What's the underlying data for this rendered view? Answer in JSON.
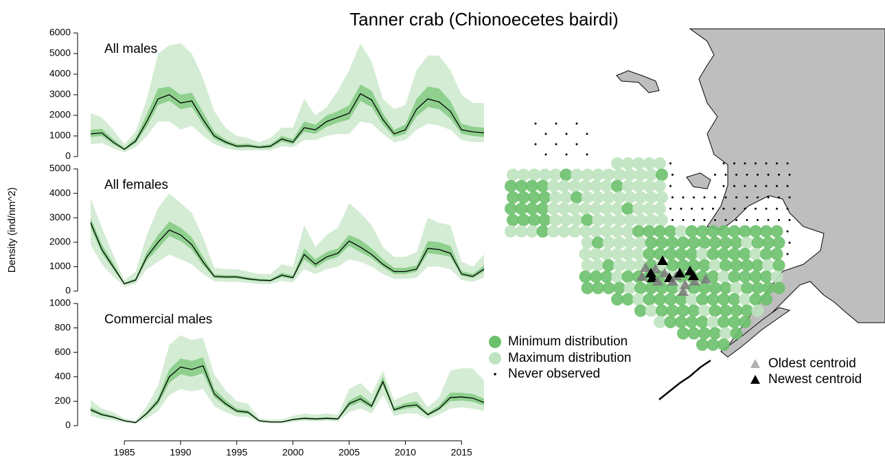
{
  "title": "Tanner crab (Chionoecetes bairdi)",
  "ylabel": "Density (ind/nm^2)",
  "chart_data": [
    {
      "type": "line",
      "title": "All males",
      "color": "#000000",
      "inner_color": "#8fd08f",
      "outer_color": "#d4ecd4",
      "xlim": [
        1982,
        2017
      ],
      "ylim": [
        0,
        6000
      ],
      "yticks": [
        0,
        1000,
        2000,
        3000,
        4000,
        5000,
        6000
      ],
      "x": [
        1982,
        1983,
        1984,
        1985,
        1986,
        1987,
        1988,
        1989,
        1990,
        1991,
        1992,
        1993,
        1994,
        1995,
        1996,
        1997,
        1998,
        1999,
        2000,
        2001,
        2002,
        2003,
        2004,
        2005,
        2006,
        2007,
        2008,
        2009,
        2010,
        2011,
        2012,
        2013,
        2014,
        2015,
        2016,
        2017
      ],
      "values": [
        1100,
        1150,
        700,
        350,
        750,
        1700,
        2800,
        3000,
        2600,
        2700,
        1800,
        1000,
        700,
        500,
        520,
        450,
        500,
        850,
        700,
        1400,
        1300,
        1700,
        1900,
        2100,
        3050,
        2750,
        1800,
        1100,
        1300,
        2300,
        2800,
        2650,
        2200,
        1300,
        1200,
        1150
      ],
      "outer_lower": [
        600,
        650,
        400,
        200,
        450,
        1000,
        1700,
        1700,
        1300,
        1500,
        1000,
        600,
        400,
        300,
        300,
        300,
        300,
        500,
        450,
        800,
        800,
        1000,
        1100,
        1100,
        1700,
        1600,
        1100,
        700,
        800,
        1300,
        1600,
        1500,
        1300,
        800,
        700,
        700
      ],
      "outer_upper": [
        2100,
        1900,
        1300,
        600,
        1200,
        2800,
        5000,
        5400,
        5500,
        5000,
        3800,
        2200,
        1400,
        1000,
        900,
        700,
        900,
        1400,
        1400,
        2800,
        2000,
        2400,
        3200,
        4200,
        5500,
        4600,
        2800,
        2300,
        2500,
        4200,
        4900,
        4900,
        4200,
        3000,
        2600,
        2600
      ],
      "inner_lower": [
        950,
        1000,
        600,
        300,
        650,
        1450,
        2500,
        2700,
        2300,
        2400,
        1550,
        850,
        600,
        420,
        440,
        390,
        420,
        720,
        600,
        1200,
        1100,
        1450,
        1650,
        1800,
        2700,
        2400,
        1550,
        950,
        1100,
        1950,
        2400,
        2300,
        1850,
        1100,
        1000,
        950
      ],
      "inner_upper": [
        1300,
        1350,
        850,
        420,
        900,
        2050,
        3300,
        3400,
        3000,
        3100,
        2150,
        1200,
        820,
        600,
        620,
        520,
        600,
        1000,
        850,
        1700,
        1550,
        2000,
        2200,
        2500,
        3500,
        3200,
        2100,
        1300,
        1550,
        2800,
        3400,
        3300,
        2700,
        1600,
        1450,
        1400
      ]
    },
    {
      "type": "line",
      "title": "All females",
      "color": "#000000",
      "inner_color": "#8fd08f",
      "outer_color": "#d4ecd4",
      "xlim": [
        1982,
        2017
      ],
      "ylim": [
        0,
        5000
      ],
      "yticks": [
        0,
        1000,
        2000,
        3000,
        4000,
        5000
      ],
      "x": [
        1982,
        1983,
        1984,
        1985,
        1986,
        1987,
        1988,
        1989,
        1990,
        1991,
        1992,
        1993,
        1994,
        1995,
        1996,
        1997,
        1998,
        1999,
        2000,
        2001,
        2002,
        2003,
        2004,
        2005,
        2006,
        2007,
        2008,
        2009,
        2010,
        2011,
        2012,
        2013,
        2014,
        2015,
        2016,
        2017
      ],
      "values": [
        2800,
        1700,
        1000,
        300,
        450,
        1400,
        2000,
        2500,
        2300,
        1900,
        1200,
        600,
        580,
        580,
        500,
        450,
        430,
        650,
        550,
        1500,
        1100,
        1400,
        1550,
        2050,
        1800,
        1500,
        1100,
        800,
        800,
        900,
        1750,
        1700,
        1550,
        700,
        600,
        900
      ],
      "outer_lower": [
        1900,
        1100,
        600,
        200,
        300,
        900,
        1200,
        1500,
        1300,
        1100,
        700,
        400,
        380,
        380,
        330,
        300,
        280,
        420,
        350,
        900,
        700,
        900,
        1000,
        1300,
        1200,
        1000,
        700,
        500,
        500,
        550,
        1000,
        1000,
        900,
        450,
        380,
        550
      ],
      "outer_upper": [
        3800,
        2600,
        1500,
        450,
        800,
        2300,
        3400,
        4000,
        3600,
        3200,
        2200,
        950,
        900,
        900,
        800,
        700,
        700,
        1100,
        1000,
        2700,
        1800,
        2300,
        2600,
        3600,
        3200,
        2700,
        1800,
        1400,
        1400,
        1600,
        3000,
        2800,
        2700,
        1200,
        1000,
        1500
      ],
      "inner_lower": [
        2600,
        1550,
        900,
        270,
        400,
        1250,
        1750,
        2250,
        2050,
        1700,
        1050,
        540,
        520,
        520,
        450,
        400,
        390,
        580,
        490,
        1300,
        950,
        1250,
        1400,
        1850,
        1600,
        1350,
        980,
        700,
        700,
        800,
        1550,
        1500,
        1400,
        620,
        530,
        800
      ],
      "inner_upper": [
        3000,
        1900,
        1150,
        340,
        520,
        1600,
        2300,
        2850,
        2600,
        2200,
        1400,
        680,
        650,
        650,
        570,
        510,
        490,
        750,
        640,
        1750,
        1300,
        1600,
        1750,
        2300,
        2100,
        1750,
        1300,
        950,
        950,
        1050,
        2050,
        2000,
        1850,
        820,
        700,
        1050
      ]
    },
    {
      "type": "line",
      "title": "Commercial males",
      "color": "#000000",
      "inner_color": "#8fd08f",
      "outer_color": "#d4ecd4",
      "xlim": [
        1982,
        2017
      ],
      "ylim": [
        0,
        1000
      ],
      "yticks": [
        0,
        200,
        400,
        600,
        800,
        1000
      ],
      "xticks": [
        1985,
        1990,
        1995,
        2000,
        2005,
        2010,
        2015
      ],
      "x": [
        1982,
        1983,
        1984,
        1985,
        1986,
        1987,
        1988,
        1989,
        1990,
        1991,
        1992,
        1993,
        1994,
        1995,
        1996,
        1997,
        1998,
        1999,
        2000,
        2001,
        2002,
        2003,
        2004,
        2005,
        2006,
        2007,
        2008,
        2009,
        2010,
        2011,
        2012,
        2013,
        2014,
        2015,
        2016,
        2017
      ],
      "values": [
        130,
        90,
        70,
        40,
        25,
        100,
        200,
        400,
        480,
        460,
        490,
        260,
        180,
        120,
        110,
        40,
        30,
        30,
        50,
        60,
        55,
        60,
        55,
        180,
        220,
        160,
        360,
        130,
        160,
        170,
        90,
        140,
        230,
        235,
        225,
        190
      ],
      "outer_lower": [
        80,
        55,
        45,
        25,
        15,
        60,
        120,
        250,
        300,
        280,
        300,
        160,
        110,
        75,
        70,
        25,
        18,
        18,
        30,
        40,
        35,
        40,
        35,
        110,
        140,
        100,
        250,
        80,
        100,
        100,
        55,
        90,
        140,
        150,
        140,
        120
      ],
      "outer_upper": [
        210,
        140,
        110,
        60,
        40,
        160,
        330,
        660,
        740,
        700,
        720,
        420,
        290,
        200,
        180,
        60,
        50,
        50,
        80,
        100,
        90,
        100,
        90,
        300,
        350,
        260,
        450,
        210,
        250,
        280,
        150,
        230,
        450,
        470,
        470,
        370
      ],
      "inner_lower": [
        115,
        80,
        62,
        35,
        22,
        88,
        175,
        350,
        420,
        400,
        430,
        230,
        160,
        105,
        95,
        35,
        26,
        26,
        44,
        53,
        48,
        53,
        48,
        155,
        195,
        140,
        330,
        115,
        140,
        150,
        80,
        125,
        200,
        205,
        195,
        165
      ],
      "inner_upper": [
        150,
        105,
        80,
        46,
        29,
        115,
        230,
        460,
        550,
        530,
        560,
        300,
        210,
        140,
        125,
        46,
        35,
        35,
        57,
        70,
        64,
        70,
        64,
        205,
        255,
        185,
        400,
        150,
        185,
        200,
        105,
        165,
        270,
        270,
        260,
        220
      ]
    }
  ],
  "map": {
    "legend": [
      "Minimum distribution",
      "Maximum distribution",
      "Never observed",
      "Oldest centroid",
      "Newest centroid"
    ],
    "colors": [
      "#6cc06c",
      "#bfe3bf",
      "#000000",
      "#b0b0b0",
      "#000000"
    ],
    "land_color": "#bebebe"
  }
}
